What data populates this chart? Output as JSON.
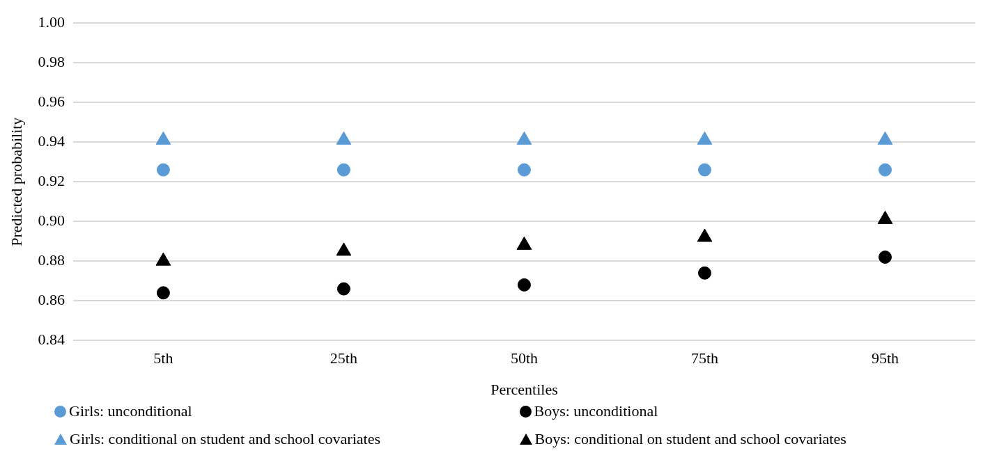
{
  "chart_data": {
    "type": "scatter",
    "xlabel": "Percentiles",
    "ylabel": "Predicted probability",
    "categories": [
      "5th",
      "25th",
      "50th",
      "75th",
      "95th"
    ],
    "ylim": [
      0.84,
      1.0
    ],
    "yticks": [
      {
        "value": 0.84,
        "label": "0.84"
      },
      {
        "value": 0.86,
        "label": "0.86"
      },
      {
        "value": 0.88,
        "label": "0.88"
      },
      {
        "value": 0.9,
        "label": "0.90"
      },
      {
        "value": 0.92,
        "label": "0.92"
      },
      {
        "value": 0.94,
        "label": "0.94"
      },
      {
        "value": 0.96,
        "label": "0.96"
      },
      {
        "value": 0.98,
        "label": "0.98"
      },
      {
        "value": 1.0,
        "label": "1.00"
      }
    ],
    "grid": "y",
    "legend": "bottom",
    "series": [
      {
        "name": "Girls: unconditional",
        "color": "#5b9bd5",
        "marker": "circle",
        "values": [
          0.926,
          0.926,
          0.926,
          0.926,
          0.926
        ]
      },
      {
        "name": "Boys: unconditional",
        "color": "#000000",
        "marker": "circle",
        "values": [
          0.864,
          0.866,
          0.868,
          0.874,
          0.882
        ]
      },
      {
        "name": "Girls: conditional on student and school covariates",
        "color": "#5b9bd5",
        "marker": "triangle",
        "values": [
          0.941,
          0.941,
          0.941,
          0.941,
          0.941
        ]
      },
      {
        "name": "Boys: conditional on student and school covariates",
        "color": "#000000",
        "marker": "triangle",
        "values": [
          0.88,
          0.885,
          0.888,
          0.892,
          0.901
        ]
      }
    ]
  }
}
